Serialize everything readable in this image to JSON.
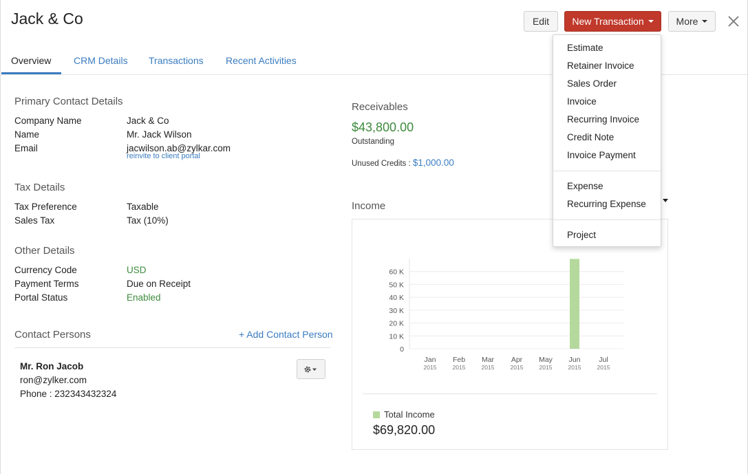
{
  "page": {
    "title": "Jack & Co"
  },
  "toolbar": {
    "edit_label": "Edit",
    "new_transaction_label": "New Transaction",
    "more_label": "More",
    "accent_color": "#c0392b"
  },
  "tabs": [
    {
      "label": "Overview",
      "active": true
    },
    {
      "label": "CRM Details"
    },
    {
      "label": "Transactions"
    },
    {
      "label": "Recent Activities"
    }
  ],
  "primary_contact": {
    "heading": "Primary Contact Details",
    "rows": [
      {
        "label": "Company Name",
        "value": "Jack & Co"
      },
      {
        "label": "Name",
        "value": "Mr. Jack Wilson"
      },
      {
        "label": "Email",
        "value": "jacwilson.ab@zylkar.com"
      }
    ],
    "reinvite_link": "reinvite to client portal"
  },
  "tax_details": {
    "heading": "Tax Details",
    "rows": [
      {
        "label": "Tax Preference",
        "value": "Taxable"
      },
      {
        "label": "Sales Tax",
        "value": "Tax (10%)"
      }
    ]
  },
  "other_details": {
    "heading": "Other Details",
    "rows": [
      {
        "label": "Currency Code",
        "value": "USD"
      },
      {
        "label": "Payment Terms",
        "value": "Due on Receipt"
      },
      {
        "label": "Portal Status",
        "value": "Enabled"
      }
    ]
  },
  "contact_persons": {
    "heading": "Contact Persons",
    "add_label": "+ Add Contact Person",
    "person": {
      "name": "Mr. Ron Jacob",
      "email": "ron@zylker.com",
      "phone": "Phone : 232343432324"
    }
  },
  "receivables": {
    "heading": "Receivables",
    "amount": "$43,800.00",
    "status": "Outstanding",
    "unused_label": "Unused Credits :",
    "unused_value": "$1,000.00"
  },
  "income": {
    "heading": "Income",
    "legend_label": "Total Income",
    "total": "$69,820.00",
    "bar_color": "#b5d99c"
  },
  "chart_data": {
    "type": "bar",
    "categories": [
      "Jan 2015",
      "Feb 2015",
      "Mar 2015",
      "Apr 2015",
      "May 2015",
      "Jun 2015",
      "Jul 2015"
    ],
    "x_tick_month": [
      "Jan",
      "Feb",
      "Mar",
      "Apr",
      "May",
      "Jun",
      "Jul"
    ],
    "x_tick_year": [
      "2015",
      "2015",
      "2015",
      "2015",
      "2015",
      "2015",
      "2015"
    ],
    "series": [
      {
        "name": "Total Income",
        "values": [
          0,
          0,
          0,
          0,
          0,
          69820,
          0
        ]
      }
    ],
    "y_ticks": [
      0,
      10,
      20,
      30,
      40,
      50,
      60
    ],
    "y_tick_labels": [
      "0",
      "10 K",
      "20 K",
      "30 K",
      "40 K",
      "50 K",
      "60 K"
    ],
    "ylim": [
      0,
      70000
    ],
    "grid": true,
    "legend": "bottom-left"
  },
  "new_transaction_menu": {
    "group1": [
      "Estimate",
      "Retainer Invoice",
      "Sales Order",
      "Invoice",
      "Recurring Invoice",
      "Credit Note",
      "Invoice Payment"
    ],
    "group2": [
      "Expense",
      "Recurring Expense"
    ],
    "group3": [
      "Project"
    ]
  }
}
